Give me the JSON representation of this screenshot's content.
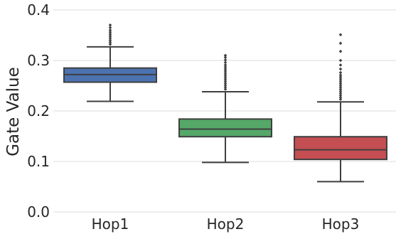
{
  "chart_data": {
    "type": "box",
    "title": "",
    "xlabel": "",
    "ylabel": "Gate Value",
    "ylim": [
      0.0,
      0.4
    ],
    "yticks": [
      0.0,
      0.1,
      0.2,
      0.3,
      0.4
    ],
    "ytick_labels": [
      "0.0",
      "0.1",
      "0.2",
      "0.3",
      "0.4"
    ],
    "grid": "horizontal",
    "categories": [
      "Hop1",
      "Hop2",
      "Hop3"
    ],
    "boxes": [
      {
        "name": "Hop1",
        "color": "#4c72b0",
        "whisker_low": 0.219,
        "q1": 0.257,
        "median": 0.272,
        "q3": 0.285,
        "whisker_high": 0.327,
        "outliers": [
          0.332,
          0.336,
          0.34,
          0.344,
          0.348,
          0.352,
          0.356,
          0.36,
          0.365,
          0.37
        ]
      },
      {
        "name": "Hop2",
        "color": "#55a868",
        "whisker_low": 0.098,
        "q1": 0.149,
        "median": 0.164,
        "q3": 0.184,
        "whisker_high": 0.238,
        "outliers": [
          0.243,
          0.247,
          0.251,
          0.255,
          0.259,
          0.263,
          0.267,
          0.271,
          0.275,
          0.279,
          0.283,
          0.287,
          0.291,
          0.296,
          0.301,
          0.306,
          0.31
        ]
      },
      {
        "name": "Hop3",
        "color": "#c44e52",
        "whisker_low": 0.06,
        "q1": 0.104,
        "median": 0.123,
        "q3": 0.149,
        "whisker_high": 0.218,
        "outliers": [
          0.223,
          0.227,
          0.231,
          0.235,
          0.239,
          0.243,
          0.247,
          0.251,
          0.255,
          0.259,
          0.263,
          0.267,
          0.271,
          0.276,
          0.283,
          0.291,
          0.3,
          0.318,
          0.334,
          0.351
        ]
      }
    ]
  }
}
